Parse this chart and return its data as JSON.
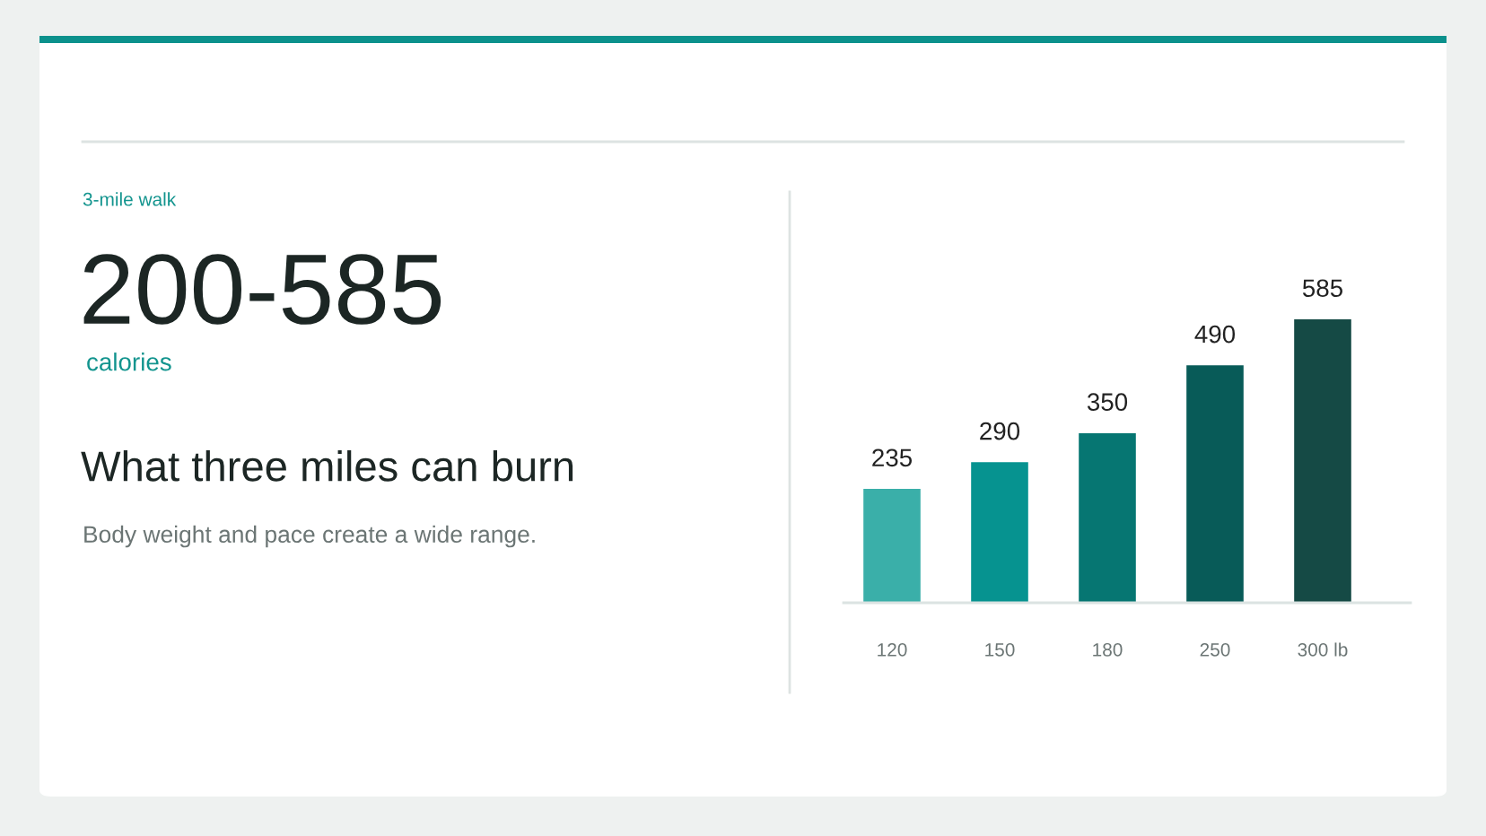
{
  "chart_data": {
    "type": "bar",
    "title": "What three miles can burn",
    "subtitle": "Body weight and pace create a wide range.",
    "annotations": [
      "3-mile walk",
      "200-585",
      "calories"
    ],
    "categories": [
      "120",
      "150",
      "180",
      "250",
      "300 lb"
    ],
    "values": [
      235,
      290,
      350,
      490,
      585
    ],
    "colors": [
      "#3aafa9",
      "#069390",
      "#067672",
      "#085b58",
      "#154a45"
    ],
    "data_labels": true
  }
}
